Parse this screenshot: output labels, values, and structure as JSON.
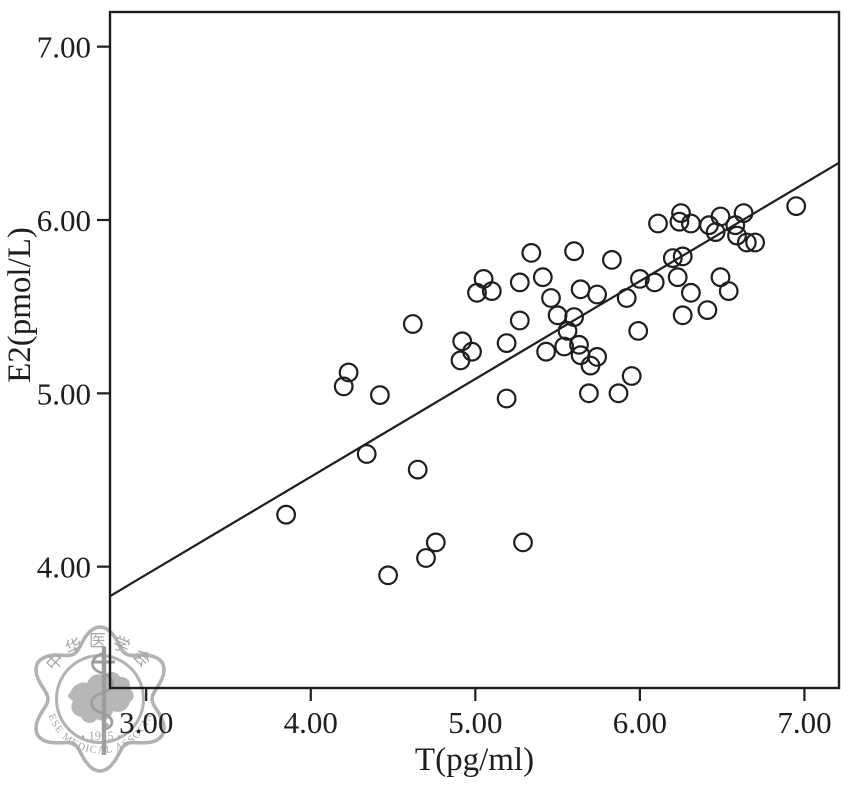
{
  "figure": {
    "background": "#ffffff",
    "ink_color": "#1e1e1e"
  },
  "chart_data": {
    "type": "scatter",
    "title": "",
    "xlabel": "T(pg/ml)",
    "ylabel": "E2(pmol/L)",
    "xlim": [
      2.78,
      7.21
    ],
    "ylim": [
      3.3,
      7.2
    ],
    "grid": false,
    "legend": null,
    "xticks": {
      "values": [
        3,
        4,
        5,
        6,
        7
      ],
      "labels": [
        "3.00",
        "4.00",
        "5.00",
        "6.00",
        "7.00"
      ]
    },
    "yticks": {
      "values": [
        4,
        5,
        6,
        7
      ],
      "labels": [
        "4.00",
        "5.00",
        "6.00",
        "7.00"
      ]
    },
    "marker": {
      "shape": "open-circle",
      "color": "#1e1e1e"
    },
    "points": [
      [
        3.85,
        4.3
      ],
      [
        4.2,
        5.04
      ],
      [
        4.23,
        5.12
      ],
      [
        4.42,
        4.99
      ],
      [
        4.34,
        4.65
      ],
      [
        4.47,
        3.95
      ],
      [
        4.62,
        5.4
      ],
      [
        4.65,
        4.56
      ],
      [
        4.7,
        4.05
      ],
      [
        4.76,
        4.14
      ],
      [
        5.29,
        4.14
      ],
      [
        4.91,
        5.19
      ],
      [
        4.92,
        5.3
      ],
      [
        4.98,
        5.24
      ],
      [
        5.01,
        5.58
      ],
      [
        5.05,
        5.66
      ],
      [
        5.1,
        5.59
      ],
      [
        5.19,
        5.29
      ],
      [
        5.19,
        4.97
      ],
      [
        5.27,
        5.64
      ],
      [
        5.27,
        5.42
      ],
      [
        5.34,
        5.81
      ],
      [
        5.6,
        5.82
      ],
      [
        5.83,
        5.77
      ],
      [
        5.41,
        5.67
      ],
      [
        5.46,
        5.55
      ],
      [
        5.64,
        5.6
      ],
      [
        5.74,
        5.57
      ],
      [
        5.92,
        5.55
      ],
      [
        5.5,
        5.45
      ],
      [
        5.6,
        5.44
      ],
      [
        5.56,
        5.36
      ],
      [
        5.43,
        5.24
      ],
      [
        5.54,
        5.27
      ],
      [
        5.63,
        5.28
      ],
      [
        5.64,
        5.22
      ],
      [
        5.74,
        5.21
      ],
      [
        5.7,
        5.16
      ],
      [
        5.69,
        5.0
      ],
      [
        5.87,
        5.0
      ],
      [
        5.95,
        5.1
      ],
      [
        5.99,
        5.36
      ],
      [
        6.0,
        5.66
      ],
      [
        6.09,
        5.64
      ],
      [
        6.2,
        5.78
      ],
      [
        6.26,
        5.79
      ],
      [
        6.23,
        5.67
      ],
      [
        6.49,
        5.67
      ],
      [
        6.54,
        5.59
      ],
      [
        6.31,
        5.58
      ],
      [
        6.41,
        5.48
      ],
      [
        6.26,
        5.45
      ],
      [
        6.95,
        6.08
      ],
      [
        6.11,
        5.98
      ],
      [
        6.25,
        6.04
      ],
      [
        6.24,
        5.99
      ],
      [
        6.31,
        5.98
      ],
      [
        6.42,
        5.97
      ],
      [
        6.46,
        5.93
      ],
      [
        6.49,
        6.02
      ],
      [
        6.58,
        5.97
      ],
      [
        6.59,
        5.91
      ],
      [
        6.63,
        6.04
      ],
      [
        6.65,
        5.87
      ],
      [
        6.7,
        5.87
      ]
    ],
    "fit_line": {
      "x1": 2.78,
      "y1": 3.83,
      "x2": 7.21,
      "y2": 6.33,
      "color": "#1e1e1e"
    }
  },
  "watermark": {
    "top_text": "中华医学会",
    "bottom_text": "CHINESE MEDICAL ASSOCIATION",
    "year": "1915",
    "color": "#b2b2b2",
    "text_color": "#a6a6a6"
  }
}
